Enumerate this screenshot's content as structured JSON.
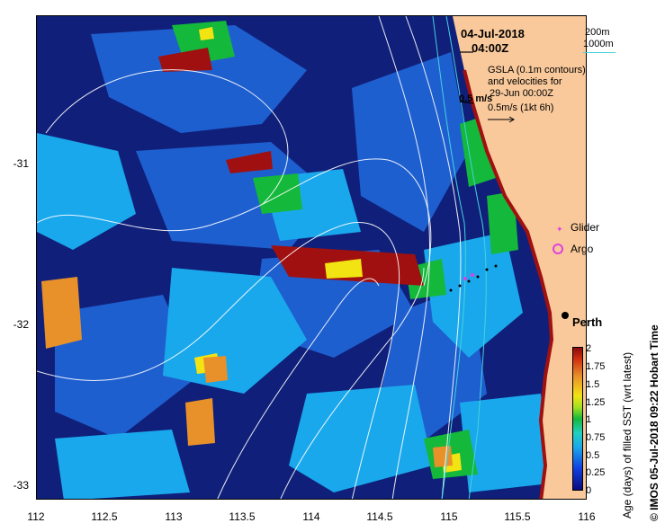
{
  "header": {
    "date": "04-Jul-2018",
    "time": "04:00Z"
  },
  "bathymetry_legend": {
    "line1": "200m",
    "line2": "1000m"
  },
  "gsla": {
    "line1": "GSLA (0.1m contours)",
    "line2": "and velocities for",
    "line3": "29-Jun 00:00Z",
    "scale_label": "0.5m/s (1kt 6h)",
    "vector_label": "0.5 m/s"
  },
  "markers": {
    "glider": "Glider",
    "argo": "Argo",
    "city": "Perth"
  },
  "axes": {
    "x_ticks": [
      "112",
      "112.5",
      "113",
      "113.5",
      "114",
      "114.5",
      "115",
      "115.5",
      "116"
    ],
    "y_ticks": [
      "-31",
      "-32",
      "-33"
    ]
  },
  "colorbar": {
    "title": "Age (days) of filled SST (wrt latest)",
    "ticks": [
      "2",
      "1.75",
      "1.5",
      "1.25",
      "1",
      "0.75",
      "0.5",
      "0.25",
      "0"
    ]
  },
  "credit": "© IMOS 05-Jul-2018 09:22 Hobart Time",
  "colors": {
    "land": "#f9c99b",
    "ocean_dark": "#10207a",
    "ocean_mid": "#1e5fd0",
    "ocean_light": "#1aa8ec",
    "green": "#14b83a",
    "yellow": "#f2e313",
    "orange": "#e8902a",
    "darkred": "#a01010"
  }
}
